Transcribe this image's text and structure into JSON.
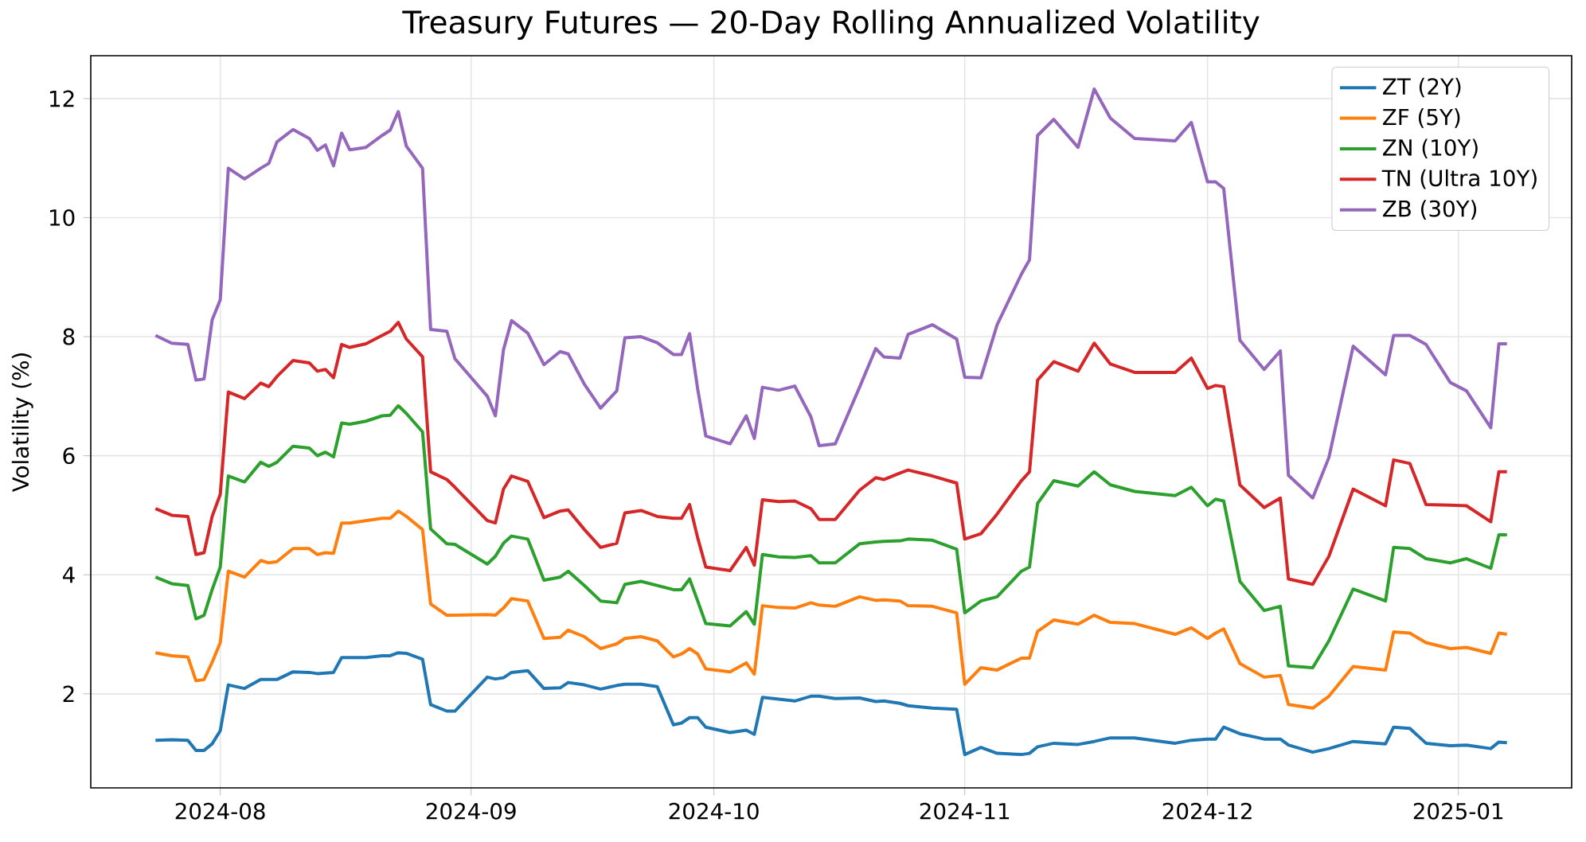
{
  "chart_data": {
    "type": "line",
    "title": "Treasury Futures — 20-Day Rolling Annualized Volatility",
    "ylabel": "Volatility (%)",
    "x": [
      "2024-07-24",
      "2024-07-26",
      "2024-07-28",
      "2024-07-29",
      "2024-07-30",
      "2024-07-31",
      "2024-08-01",
      "2024-08-02",
      "2024-08-04",
      "2024-08-06",
      "2024-08-07",
      "2024-08-08",
      "2024-08-10",
      "2024-08-12",
      "2024-08-13",
      "2024-08-14",
      "2024-08-15",
      "2024-08-16",
      "2024-08-17",
      "2024-08-19",
      "2024-08-21",
      "2024-08-22",
      "2024-08-23",
      "2024-08-24",
      "2024-08-26",
      "2024-08-27",
      "2024-08-29",
      "2024-08-30",
      "2024-09-03",
      "2024-09-04",
      "2024-09-05",
      "2024-09-06",
      "2024-09-08",
      "2024-09-10",
      "2024-09-12",
      "2024-09-13",
      "2024-09-15",
      "2024-09-17",
      "2024-09-19",
      "2024-09-20",
      "2024-09-22",
      "2024-09-24",
      "2024-09-26",
      "2024-09-27",
      "2024-09-28",
      "2024-09-29",
      "2024-09-30",
      "2024-10-03",
      "2024-10-05",
      "2024-10-06",
      "2024-10-07",
      "2024-10-09",
      "2024-10-11",
      "2024-10-13",
      "2024-10-14",
      "2024-10-16",
      "2024-10-19",
      "2024-10-21",
      "2024-10-22",
      "2024-10-24",
      "2024-10-25",
      "2024-10-28",
      "2024-10-31",
      "2024-11-01",
      "2024-11-03",
      "2024-11-05",
      "2024-11-08",
      "2024-11-09",
      "2024-11-10",
      "2024-11-12",
      "2024-11-15",
      "2024-11-17",
      "2024-11-19",
      "2024-11-22",
      "2024-11-27",
      "2024-11-29",
      "2024-12-01",
      "2024-12-02",
      "2024-12-03",
      "2024-12-05",
      "2024-12-08",
      "2024-12-10",
      "2024-12-11",
      "2024-12-14",
      "2024-12-16",
      "2024-12-19",
      "2024-12-23",
      "2024-12-24",
      "2024-12-26",
      "2024-12-28",
      "2024-12-31",
      "2025-01-02",
      "2025-01-05",
      "2025-01-06",
      "2025-01-07"
    ],
    "series": [
      {
        "name": "ZT (2Y)",
        "color": "#1f77b4",
        "values": [
          1.22,
          1.23,
          1.22,
          1.05,
          1.05,
          1.16,
          1.38,
          2.15,
          2.09,
          2.24,
          2.24,
          2.24,
          2.37,
          2.36,
          2.34,
          2.35,
          2.36,
          2.61,
          2.61,
          2.61,
          2.64,
          2.64,
          2.69,
          2.68,
          2.58,
          1.82,
          1.71,
          1.71,
          2.28,
          2.25,
          2.27,
          2.36,
          2.39,
          2.09,
          2.1,
          2.19,
          2.15,
          2.08,
          2.14,
          2.16,
          2.16,
          2.12,
          1.48,
          1.51,
          1.6,
          1.6,
          1.44,
          1.35,
          1.39,
          1.32,
          1.94,
          1.91,
          1.88,
          1.96,
          1.96,
          1.92,
          1.93,
          1.87,
          1.88,
          1.84,
          1.8,
          1.76,
          1.74,
          0.98,
          1.1,
          1.0,
          0.98,
          1.0,
          1.11,
          1.17,
          1.15,
          1.2,
          1.26,
          1.26,
          1.17,
          1.22,
          1.24,
          1.24,
          1.44,
          1.33,
          1.24,
          1.24,
          1.14,
          1.02,
          1.08,
          1.2,
          1.16,
          1.44,
          1.42,
          1.17,
          1.13,
          1.14,
          1.08,
          1.19,
          1.18
        ]
      },
      {
        "name": "ZF (5Y)",
        "color": "#ff7f0e",
        "values": [
          2.69,
          2.64,
          2.62,
          2.22,
          2.24,
          2.53,
          2.86,
          4.06,
          3.96,
          4.24,
          4.2,
          4.22,
          4.44,
          4.44,
          4.34,
          4.37,
          4.36,
          4.87,
          4.87,
          4.91,
          4.95,
          4.95,
          5.07,
          4.98,
          4.76,
          3.51,
          3.32,
          3.32,
          3.33,
          3.32,
          3.44,
          3.6,
          3.56,
          2.93,
          2.95,
          3.07,
          2.96,
          2.76,
          2.84,
          2.93,
          2.96,
          2.89,
          2.62,
          2.67,
          2.76,
          2.67,
          2.42,
          2.37,
          2.52,
          2.33,
          3.48,
          3.45,
          3.44,
          3.53,
          3.49,
          3.47,
          3.63,
          3.57,
          3.58,
          3.56,
          3.48,
          3.47,
          3.36,
          2.16,
          2.44,
          2.4,
          2.6,
          2.6,
          3.05,
          3.24,
          3.17,
          3.32,
          3.2,
          3.18,
          3.0,
          3.11,
          2.93,
          3.02,
          3.09,
          2.51,
          2.28,
          2.31,
          1.82,
          1.76,
          1.96,
          2.46,
          2.4,
          3.04,
          3.02,
          2.86,
          2.76,
          2.78,
          2.68,
          3.02,
          3.0
        ]
      },
      {
        "name": "ZN (10Y)",
        "color": "#2ca02c",
        "values": [
          3.96,
          3.85,
          3.82,
          3.26,
          3.32,
          3.75,
          4.13,
          5.66,
          5.56,
          5.89,
          5.82,
          5.89,
          6.16,
          6.13,
          6.0,
          6.06,
          5.98,
          6.55,
          6.53,
          6.58,
          6.67,
          6.68,
          6.84,
          6.71,
          6.4,
          4.77,
          4.52,
          4.51,
          4.18,
          4.31,
          4.53,
          4.65,
          4.6,
          3.91,
          3.96,
          4.06,
          3.82,
          3.56,
          3.53,
          3.84,
          3.89,
          3.82,
          3.75,
          3.75,
          3.93,
          3.56,
          3.18,
          3.14,
          3.38,
          3.17,
          4.34,
          4.3,
          4.29,
          4.32,
          4.2,
          4.2,
          4.52,
          4.55,
          4.56,
          4.57,
          4.6,
          4.58,
          4.43,
          3.36,
          3.56,
          3.63,
          4.06,
          4.13,
          5.2,
          5.58,
          5.49,
          5.73,
          5.51,
          5.4,
          5.33,
          5.47,
          5.16,
          5.27,
          5.24,
          3.89,
          3.4,
          3.47,
          2.47,
          2.44,
          2.89,
          3.76,
          3.56,
          4.46,
          4.44,
          4.27,
          4.2,
          4.27,
          4.11,
          4.67,
          4.67
        ]
      },
      {
        "name": "TN (Ultra 10Y)",
        "color": "#d62728",
        "values": [
          5.11,
          5.0,
          4.98,
          4.34,
          4.37,
          4.98,
          5.35,
          7.07,
          6.96,
          7.22,
          7.16,
          7.33,
          7.6,
          7.56,
          7.42,
          7.45,
          7.31,
          7.87,
          7.82,
          7.88,
          8.02,
          8.09,
          8.24,
          7.96,
          7.66,
          5.73,
          5.6,
          5.47,
          4.91,
          4.87,
          5.44,
          5.66,
          5.57,
          4.96,
          5.07,
          5.09,
          4.76,
          4.46,
          4.53,
          5.04,
          5.08,
          4.98,
          4.95,
          4.95,
          5.18,
          4.62,
          4.13,
          4.07,
          4.46,
          4.16,
          5.26,
          5.23,
          5.24,
          5.11,
          4.93,
          4.93,
          5.42,
          5.63,
          5.6,
          5.71,
          5.76,
          5.66,
          5.54,
          4.6,
          4.69,
          5.02,
          5.58,
          5.73,
          7.27,
          7.58,
          7.42,
          7.89,
          7.54,
          7.4,
          7.4,
          7.64,
          7.13,
          7.18,
          7.16,
          5.51,
          5.13,
          5.29,
          3.93,
          3.84,
          4.31,
          5.44,
          5.16,
          5.93,
          5.87,
          5.18,
          5.17,
          5.16,
          4.89,
          5.73,
          5.73
        ]
      },
      {
        "name": "ZB (30Y)",
        "color": "#9467bd",
        "values": [
          8.02,
          7.89,
          7.87,
          7.27,
          7.29,
          8.28,
          8.62,
          10.83,
          10.65,
          10.83,
          10.91,
          11.27,
          11.48,
          11.33,
          11.13,
          11.22,
          10.87,
          11.42,
          11.14,
          11.18,
          11.38,
          11.47,
          11.78,
          11.2,
          10.83,
          8.12,
          8.09,
          7.63,
          7.0,
          6.67,
          7.78,
          8.27,
          8.06,
          7.53,
          7.75,
          7.71,
          7.2,
          6.8,
          7.09,
          7.98,
          8.0,
          7.9,
          7.7,
          7.7,
          8.05,
          7.12,
          6.33,
          6.2,
          6.67,
          6.29,
          7.15,
          7.1,
          7.17,
          6.65,
          6.17,
          6.2,
          7.15,
          7.8,
          7.66,
          7.64,
          8.04,
          8.2,
          7.96,
          7.32,
          7.31,
          8.2,
          9.05,
          9.29,
          11.38,
          11.65,
          11.18,
          12.16,
          11.67,
          11.33,
          11.29,
          11.6,
          10.6,
          10.6,
          10.49,
          7.94,
          7.45,
          7.76,
          5.67,
          5.29,
          5.97,
          7.84,
          7.36,
          8.02,
          8.02,
          7.87,
          7.23,
          7.09,
          6.47,
          7.88,
          7.88
        ]
      }
    ],
    "xlim": [
      "2024-07-16",
      "2025-01-15"
    ],
    "xticks": [
      "2024-08",
      "2024-09",
      "2024-10",
      "2024-11",
      "2024-12",
      "2025-01"
    ],
    "ylim": [
      0.42,
      12.72
    ],
    "yticks": [
      2,
      4,
      6,
      8,
      10,
      12
    ],
    "grid": true,
    "legend": "top right"
  }
}
